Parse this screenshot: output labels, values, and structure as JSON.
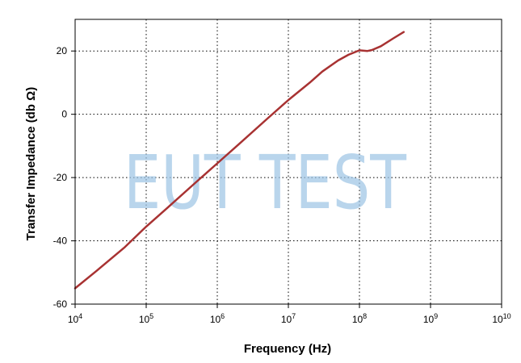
{
  "chart_data": {
    "type": "line",
    "xlabel": "Frequency (Hz)",
    "ylabel": "Transfer Impedance (db Ω)",
    "x_scale": "log",
    "xlim": [
      10000,
      10000000000
    ],
    "ylim": [
      -60,
      30
    ],
    "x_ticks": [
      {
        "value": 10000,
        "base": "10",
        "exp": "4"
      },
      {
        "value": 100000,
        "base": "10",
        "exp": "5"
      },
      {
        "value": 1000000,
        "base": "10",
        "exp": "6"
      },
      {
        "value": 10000000,
        "base": "10",
        "exp": "7"
      },
      {
        "value": 100000000,
        "base": "10",
        "exp": "8"
      },
      {
        "value": 1000000000,
        "base": "10",
        "exp": "9"
      },
      {
        "value": 10000000000,
        "base": "10",
        "exp": "10"
      }
    ],
    "y_ticks": [
      {
        "value": 20,
        "label": "20"
      },
      {
        "value": 0,
        "label": "0"
      },
      {
        "value": -20,
        "label": "-20"
      },
      {
        "value": -40,
        "label": "-40"
      },
      {
        "value": -60,
        "label": "-60"
      }
    ],
    "grid": true,
    "line_color": "#a83232",
    "watermark": "EUT TEST",
    "series": [
      {
        "x": [
          10000,
          20000,
          50000,
          100000,
          200000,
          500000,
          1000000,
          2000000,
          5000000,
          10000000,
          20000000,
          30000000,
          50000000,
          70000000,
          90000000,
          100000000,
          130000000,
          150000000,
          200000000,
          300000000,
          420000000
        ],
        "y": [
          -55,
          -49.5,
          -42,
          -35.5,
          -29.5,
          -21.5,
          -15.5,
          -9.5,
          -1.5,
          4.5,
          10,
          13.5,
          17,
          18.8,
          19.8,
          20.2,
          20.0,
          20.3,
          21.5,
          24,
          26
        ]
      }
    ]
  }
}
